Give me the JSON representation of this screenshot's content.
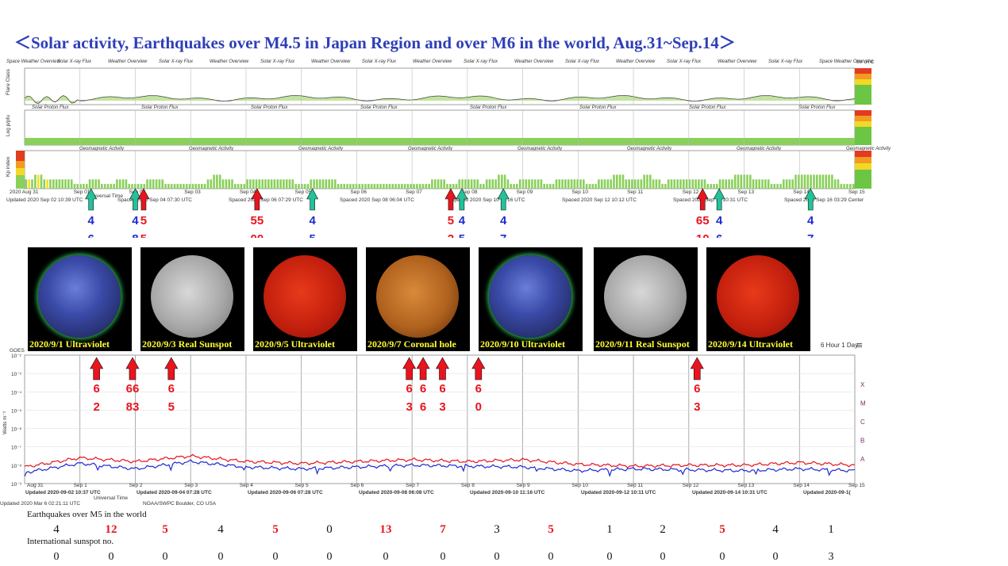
{
  "title": "＜Solar activity, Earthquakes over M4.5 in Japan Region and over M6 in the world,   Aug.31~Sep.14＞",
  "top_panel": {
    "header_labels": [
      "Space Weather Overview",
      "Solar X-ray Flux",
      "Weather Overview",
      "Solar X-ray Flux",
      "Weather Overview",
      "Solar X-ray Flux",
      "Weather Overview",
      "Solar X-ray Flux",
      "Weather Overview",
      "Solar X-ray Flux",
      "Weather Overview",
      "Solar X-ray Flux",
      "Weather Overview",
      "Solar X-ray Flux",
      "Weather Overview",
      "Solar X-ray Flux",
      "Space Weather Overview"
    ],
    "utc_label": "00 UTC",
    "row1_ylabel": "Flare Class",
    "row2_ylabel": "Log p/pfu",
    "row3_ylabel": "Kp index",
    "row2_sub": [
      "Solar Proton Flux",
      "Solar Proton Flux",
      "Solar Proton Flux",
      "Solar Proton Flux",
      "Solar Proton Flux",
      "Solar Proton Flux",
      "Solar Proton Flux",
      "Solar Proton Flux"
    ],
    "row3_sub": [
      "Geomagnetic Activity",
      "Geomagnetic Activity",
      "Geomagnetic Activity",
      "Geomagnetic Activity",
      "Geomagnetic Activity",
      "Geomagnetic Activity",
      "Geomagnetic Activity",
      "Geomagnetic Activity"
    ],
    "day_ticks": [
      "2020 Aug 31",
      "Sep 01",
      "Sep 02",
      "Sep 03",
      "Sep 04",
      "Sep 05",
      "Sep 06",
      "Sep 07",
      "Sep 08",
      "Sep 09",
      "Sep 10",
      "Sep 11",
      "Sep 12",
      "Sep 13",
      "Sep 14",
      "Sep 15"
    ],
    "footer_updates": [
      "Updated 2020 Sep 02 10:39 UTC",
      "Spaced 2020 Sep 04 07:30 UTC",
      "Spaced 2020 Sep 06 07:29 UTC",
      "Spaced 2020 Sep 08 06:04 UTC",
      "Spaced 2020 Sep 10 11:16 UTC",
      "Spaced 2020 Sep 12 10:12 UTC",
      "Spaced 2020 Sep 14 10:31 UTC",
      "Spaced 2020 Sep 16 03:29 Center"
    ],
    "universal_time": "Universal Time"
  },
  "kp_chart": {
    "type": "bar",
    "ylabel": "Kp index",
    "ylim": [
      0,
      9
    ],
    "values": [
      2,
      2,
      2,
      3,
      3,
      3,
      2,
      2,
      2,
      2,
      2,
      2,
      2,
      2,
      2,
      2,
      1,
      1,
      1,
      1,
      1,
      2,
      2,
      2,
      2,
      1,
      1,
      1,
      1,
      1,
      2,
      2,
      2,
      2,
      1,
      1,
      1,
      1,
      1,
      1,
      2,
      2,
      2,
      2,
      2,
      2,
      1,
      1,
      1,
      1,
      1,
      1,
      1,
      1,
      1,
      1,
      1,
      1,
      1,
      1,
      2,
      2,
      3,
      3,
      3,
      2,
      2,
      2,
      2,
      1,
      1,
      1,
      1,
      2,
      2,
      2,
      2,
      2,
      2,
      2,
      2,
      2,
      2,
      2,
      2,
      2,
      2,
      2,
      2,
      1,
      1,
      1,
      1,
      1,
      2,
      2,
      2,
      2,
      2,
      2,
      2,
      2,
      2,
      1,
      1,
      1,
      1,
      1,
      1,
      1,
      1,
      1,
      1,
      1,
      1,
      1,
      1,
      1,
      1,
      1,
      1,
      1,
      1,
      1,
      1,
      1,
      1,
      1,
      1,
      1,
      1,
      1,
      1,
      1,
      2,
      2,
      2,
      2,
      2,
      1,
      1,
      1,
      1,
      2,
      2,
      2,
      2,
      2,
      2,
      2,
      1,
      1,
      2,
      2,
      2,
      2,
      3,
      3,
      3,
      2,
      1,
      1,
      1,
      2,
      2,
      2,
      2,
      2,
      2,
      2,
      2,
      1,
      1,
      1,
      1,
      2,
      2,
      2,
      2,
      2,
      2,
      2,
      2,
      2,
      2,
      1,
      1,
      1,
      1,
      2,
      2,
      2,
      2,
      2,
      3,
      3,
      3,
      3,
      2,
      2,
      2,
      2,
      2,
      2,
      3,
      3,
      3,
      2,
      2,
      2,
      1,
      1,
      2,
      2,
      2,
      2,
      2,
      2,
      2,
      2,
      2,
      2,
      2,
      2,
      2,
      1,
      1,
      1,
      1,
      2,
      2,
      2,
      2,
      2,
      3,
      3,
      3,
      3,
      3,
      3,
      2,
      2,
      2,
      2,
      2,
      2,
      1,
      1,
      1,
      1,
      2,
      2,
      2,
      2,
      3,
      3,
      3,
      3,
      3,
      3,
      3,
      3,
      3,
      3,
      3,
      3,
      3,
      2,
      2,
      1,
      1,
      1,
      1,
      1
    ]
  },
  "japan_markers": [
    {
      "top": "4",
      "bottom": "6",
      "color": "blue",
      "day": 1.2
    },
    {
      "top": "4",
      "bottom": "8",
      "color": "blue",
      "day": 2.0
    },
    {
      "top": "5",
      "bottom": "5",
      "color": "red",
      "day": 2.15
    },
    {
      "top": "55",
      "bottom": "00",
      "color": "red",
      "day": 4.2
    },
    {
      "top": "4",
      "bottom": "5",
      "color": "blue",
      "day": 5.2
    },
    {
      "top": "5",
      "bottom": "2",
      "color": "red",
      "day": 7.7
    },
    {
      "top": "4",
      "bottom": "5",
      "color": "blue",
      "day": 7.9
    },
    {
      "top": "4",
      "bottom": "7",
      "color": "blue",
      "day": 8.65
    },
    {
      "top": "65",
      "bottom": "10",
      "color": "red",
      "day": 12.25
    },
    {
      "top": "4",
      "bottom": "6",
      "color": "blue",
      "day": 12.55
    },
    {
      "top": "4",
      "bottom": "7",
      "color": "blue",
      "day": 14.2
    }
  ],
  "sun_images": [
    {
      "caption": "2020/9/1 Ultraviolet",
      "kind": "uv"
    },
    {
      "caption": "2020/9/3 Real Sunspot",
      "kind": "white"
    },
    {
      "caption": "2020/9/5 Ultraviolet",
      "kind": "red"
    },
    {
      "caption": "2020/9/7 Coronal hole",
      "kind": "orange"
    },
    {
      "caption": "2020/9/10 Ultraviolet",
      "kind": "uv"
    },
    {
      "caption": "2020/9/11 Real Sunspot",
      "kind": "white"
    },
    {
      "caption": "2020/9/14 Ultraviolet",
      "kind": "red"
    }
  ],
  "xray_panel": {
    "goes_label": "GOES",
    "zoom_label": "6 Hour 1 Day",
    "ylabel": "Watts m⁻²",
    "ytick_labels": [
      "10⁻²",
      "10⁻³",
      "10⁻⁴",
      "10⁻⁵",
      "10⁻⁶",
      "10⁻⁷",
      "10⁻⁸",
      "10⁻⁹"
    ],
    "class_labels": [
      "X",
      "M",
      "C",
      "B",
      "A"
    ],
    "day_ticks": [
      "Aug 31",
      "Sep 1",
      "Sep 2",
      "Sep 3",
      "Sep 4",
      "Sep 5",
      "Sep 6",
      "Sep 7",
      "Sep 8",
      "Sep 9",
      "Sep 10",
      "Sep 11",
      "Sep 12",
      "Sep 13",
      "Sep 14",
      "Sep 15"
    ],
    "footer_updates": [
      "Updated 2020-09-02 10:37 UTC",
      "Updated 2020-09-04 07:28 UTC",
      "Updated 2020-09-06 07:28 UTC",
      "Updated 2020-09-08 06:08 UTC",
      "Updated 2020-09-10 11:16 UTC",
      "Updated 2020-09-12 10:11 UTC",
      "Updated 2020-09-14 10:31 UTC",
      "Updated 2020-09-1("
    ],
    "bottom_left": "Updated 2020 Mar  6 02:21:11 UTC",
    "bottom_center": "NOAA/SWPC Boulder, CO USA",
    "universal_time": "Universal Time"
  },
  "world_markers": [
    {
      "top": "6",
      "bottom": "2",
      "day": 1.3
    },
    {
      "top": "66",
      "bottom": "83",
      "day": 1.95
    },
    {
      "top": "6",
      "bottom": "5",
      "day": 2.65
    },
    {
      "top": "6",
      "bottom": "3",
      "day": 6.95
    },
    {
      "top": "6",
      "bottom": "6",
      "day": 7.2
    },
    {
      "top": "6",
      "bottom": "3",
      "day": 7.55
    },
    {
      "top": "6",
      "bottom": "0",
      "day": 8.2
    },
    {
      "top": "6",
      "bottom": "3",
      "day": 12.15
    }
  ],
  "chart_data": {
    "type": "line",
    "x": [
      "Aug 31",
      "Sep 1",
      "Sep 2",
      "Sep 3",
      "Sep 4",
      "Sep 5",
      "Sep 6",
      "Sep 7",
      "Sep 8",
      "Sep 9",
      "Sep 10",
      "Sep 11",
      "Sep 12",
      "Sep 13",
      "Sep 14",
      "Sep 15"
    ],
    "ylabel": "Watts m⁻²",
    "series": [
      {
        "values": [
          -8.1,
          -7.6,
          -7.8,
          -7.5,
          -7.8,
          -7.9,
          -7.8,
          -7.7,
          -7.8,
          -7.7,
          -7.95,
          -8.05,
          -8.0,
          -8.0,
          -7.85,
          -8.0
        ],
        "color": "#e8141e"
      },
      {
        "values": [
          -8.4,
          -7.9,
          -8.2,
          -7.8,
          -8.1,
          -8.2,
          -8.1,
          -8.0,
          -8.05,
          -8.1,
          -8.3,
          -8.2,
          -8.25,
          -8.3,
          -8.2,
          -8.3
        ],
        "color": "#1e2ad1"
      }
    ],
    "ylim": [
      -9,
      -2
    ]
  },
  "stats": {
    "world_label": "Earthquakes over M5 in the world",
    "world_counts": [
      "4",
      "12",
      "5",
      "4",
      "5",
      "0",
      "13",
      "7",
      "3",
      "5",
      "1",
      "2",
      "5",
      "4",
      "1"
    ],
    "world_highlight": [
      false,
      true,
      true,
      false,
      true,
      false,
      true,
      true,
      false,
      true,
      false,
      false,
      true,
      false,
      false
    ],
    "sunspot_label": "International sunspot no.",
    "sunspot_counts": [
      "0",
      "0",
      "0",
      "0",
      "0",
      "0",
      "0",
      "0",
      "0",
      "0",
      "0",
      "0",
      "0",
      "0",
      "3"
    ]
  }
}
